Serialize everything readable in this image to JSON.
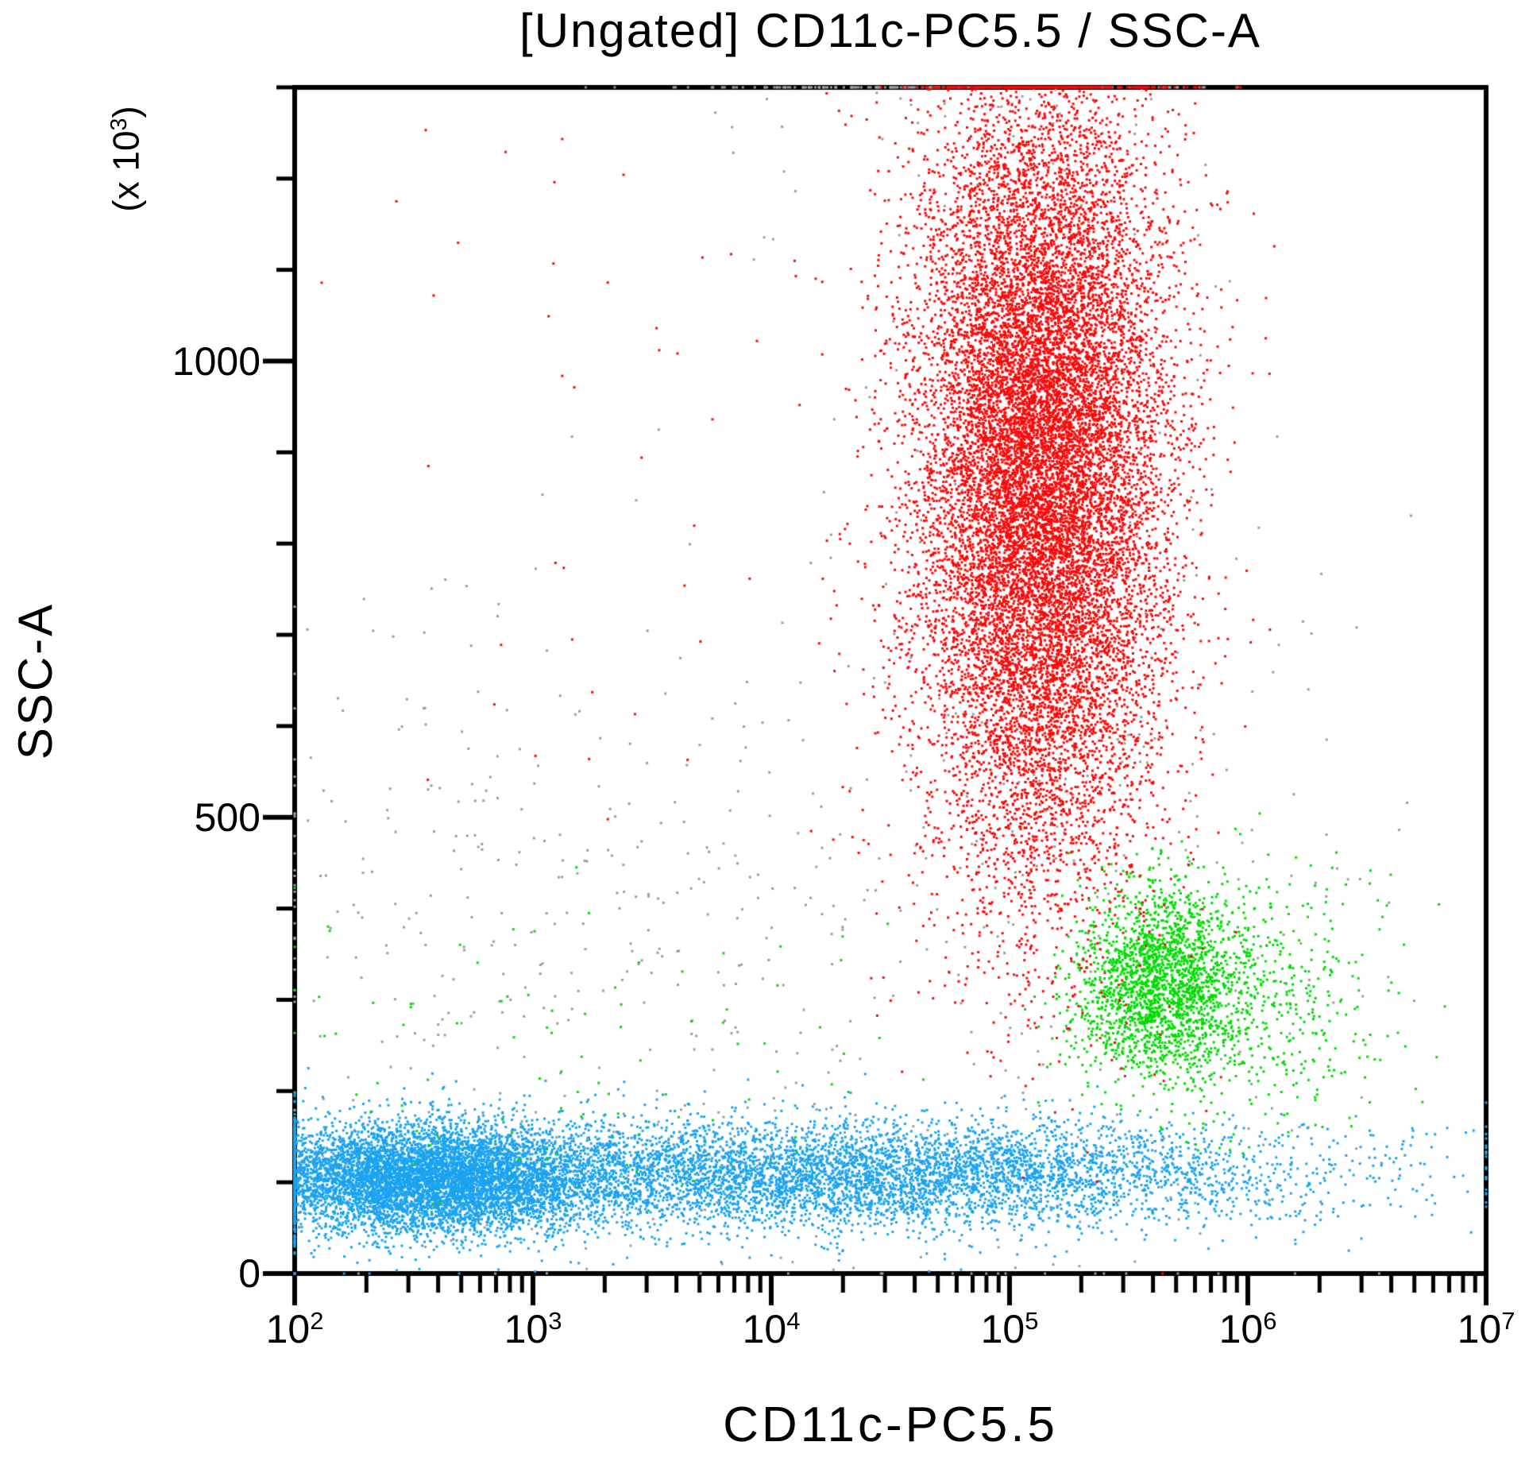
{
  "chart_data": {
    "type": "scatter",
    "title": "[Ungated] CD11c-PC5.5 / SSC-A",
    "xlabel": "CD11c-PC5.5",
    "ylabel": "SSC-A",
    "y_unit": {
      "prefix": "(x 10",
      "exp": "3",
      "suffix": ")"
    },
    "background_color": "#ffffff",
    "axis_color": "#000000",
    "grid": false,
    "legend": false,
    "dot_size_px": 3,
    "x_axis": {
      "scale": "log",
      "min": 100,
      "max": 10000000,
      "ticks": [
        {
          "base": "10",
          "exp": "2",
          "value": 100
        },
        {
          "base": "10",
          "exp": "3",
          "value": 1000
        },
        {
          "base": "10",
          "exp": "4",
          "value": 10000
        },
        {
          "base": "10",
          "exp": "5",
          "value": 100000
        },
        {
          "base": "10",
          "exp": "6",
          "value": 1000000
        },
        {
          "base": "10",
          "exp": "7",
          "value": 10000000
        }
      ],
      "minor_per_decade": [
        2,
        3,
        4,
        5,
        6,
        7,
        8,
        9
      ]
    },
    "y_axis": {
      "scale": "linear",
      "units_multiplier": 1000,
      "min": 0,
      "max": 1300,
      "major_ticks": [
        {
          "label": "0",
          "value": 0
        },
        {
          "label": "500",
          "value": 500
        },
        {
          "label": "1000",
          "value": 1000
        }
      ],
      "minor_tick_step": 100
    },
    "populations": [
      {
        "name": "gray-events-mid-scatter",
        "color": "#9c9c9c",
        "count": 420,
        "x": {
          "dist": "normal",
          "log_mean": 3.2,
          "log_sd": 0.85
        },
        "y": {
          "dist": "normal",
          "mean": 380,
          "sd": 190
        }
      },
      {
        "name": "gray-events-halo",
        "color": "#9c9c9c",
        "count": 260,
        "x": {
          "dist": "normal",
          "log_mean": 5.2,
          "log_sd": 0.45
        },
        "y": {
          "dist": "normal",
          "mean": 600,
          "sd": 330
        }
      },
      {
        "name": "gray-events-top-pileup",
        "color": "#9c9c9c",
        "count": 230,
        "x": {
          "dist": "normal",
          "log_mean": 4.75,
          "log_sd": 0.55
        },
        "y": {
          "dist": "normal",
          "mean": 1400,
          "sd": 120
        }
      },
      {
        "name": "gray-events-low-band",
        "color": "#9c9c9c",
        "count": 130,
        "x": {
          "dist": "normal",
          "log_mean": 3.4,
          "log_sd": 1.0
        },
        "y": {
          "dist": "normal",
          "mean": 120,
          "sd": 35
        }
      },
      {
        "name": "gray-events-right-sparse",
        "color": "#9c9c9c",
        "count": 60,
        "x": {
          "dist": "normal",
          "log_mean": 6.2,
          "log_sd": 0.35
        },
        "y": {
          "dist": "normal",
          "mean": 350,
          "sd": 250
        }
      },
      {
        "name": "blue-population-left-dense",
        "color": "#1aa3f0",
        "count": 6500,
        "x": {
          "dist": "normal",
          "log_mean": 2.55,
          "log_sd": 0.38
        },
        "y": {
          "dist": "normal",
          "mean": 103,
          "sd": 30
        }
      },
      {
        "name": "blue-population-spread",
        "color": "#1aa3f0",
        "count": 6000,
        "x": {
          "dist": "normal",
          "log_mean": 4.3,
          "log_sd": 0.95
        },
        "y": {
          "dist": "normal",
          "mean": 108,
          "sd": 30
        }
      },
      {
        "name": "green-population-main",
        "color": "#00dc00",
        "count": 2000,
        "x": {
          "dist": "normal",
          "log_mean": 5.63,
          "log_sd": 0.17
        },
        "y": {
          "dist": "normal",
          "mean": 318,
          "sd": 52
        }
      },
      {
        "name": "green-population-right-tail",
        "color": "#00dc00",
        "count": 550,
        "x": {
          "dist": "normal",
          "log_mean": 6.02,
          "log_sd": 0.28
        },
        "y": {
          "dist": "normal",
          "mean": 300,
          "sd": 70
        }
      },
      {
        "name": "green-population-stragglers",
        "color": "#00dc00",
        "count": 90,
        "x": {
          "dist": "normal",
          "log_mean": 3.1,
          "log_sd": 0.75
        },
        "y": {
          "dist": "normal",
          "mean": 245,
          "sd": 85
        }
      },
      {
        "name": "red-population-main",
        "color": "#fa0a0a",
        "count": 16000,
        "x": {
          "dist": "normal",
          "log_mean": 5.13,
          "log_sd": 0.26
        },
        "y": {
          "dist": "normal",
          "mean": 880,
          "sd": 215
        }
      },
      {
        "name": "red-population-scatter",
        "color": "#fa0a0a",
        "count": 55,
        "x": {
          "dist": "uniform",
          "log_min": 2.1,
          "log_max": 4.5
        },
        "y": {
          "dist": "uniform",
          "min": 420,
          "max": 1295
        }
      }
    ]
  }
}
